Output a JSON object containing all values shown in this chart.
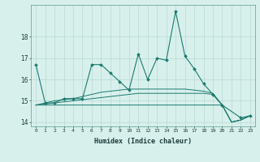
{
  "xlabel": "Humidex (Indice chaleur)",
  "x": [
    0,
    1,
    2,
    3,
    4,
    5,
    6,
    7,
    8,
    9,
    10,
    11,
    12,
    13,
    14,
    15,
    16,
    17,
    18,
    19,
    20,
    21,
    22,
    23
  ],
  "line1": [
    16.7,
    14.9,
    14.9,
    15.1,
    15.1,
    15.1,
    16.7,
    16.7,
    16.3,
    15.9,
    15.5,
    17.2,
    16.0,
    17.0,
    16.9,
    19.2,
    17.1,
    16.5,
    15.8,
    15.3,
    14.8,
    null,
    14.2,
    14.3
  ],
  "line2": [
    14.8,
    14.8,
    14.8,
    14.8,
    14.8,
    14.8,
    14.8,
    14.8,
    14.8,
    14.8,
    14.8,
    14.8,
    14.8,
    14.8,
    14.8,
    14.8,
    14.8,
    14.8,
    14.8,
    14.8,
    14.8,
    14.0,
    14.1,
    14.3
  ],
  "line3": [
    14.8,
    14.85,
    14.9,
    14.95,
    15.0,
    15.05,
    15.1,
    15.15,
    15.2,
    15.25,
    15.3,
    15.35,
    15.35,
    15.35,
    15.35,
    15.35,
    15.35,
    15.35,
    15.35,
    15.3,
    14.8,
    14.0,
    14.1,
    14.3
  ],
  "line4": [
    14.8,
    14.9,
    15.0,
    15.05,
    15.1,
    15.2,
    15.3,
    15.4,
    15.45,
    15.5,
    15.55,
    15.55,
    15.55,
    15.55,
    15.55,
    15.55,
    15.55,
    15.5,
    15.45,
    15.35,
    14.8,
    14.0,
    14.1,
    14.3
  ],
  "line_color": "#1a7a6e",
  "bg_color": "#d8f0ec",
  "grid_color": "#b8d8d4",
  "ylim": [
    13.8,
    19.5
  ],
  "yticks": [
    14,
    15,
    16,
    17,
    18
  ],
  "xlim": [
    -0.5,
    23.5
  ]
}
